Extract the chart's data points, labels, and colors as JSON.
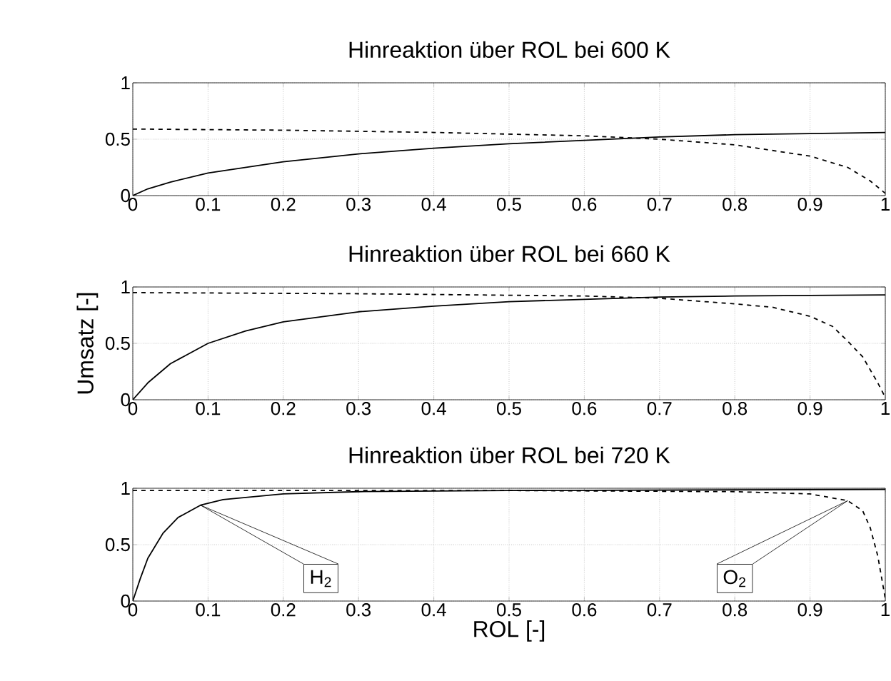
{
  "chart_data": [
    {
      "type": "line",
      "title": "Hinreaktion über ROL bei 600 K",
      "xlim": [
        0,
        1
      ],
      "ylim": [
        0,
        1
      ],
      "xticks": [
        0,
        0.1,
        0.2,
        0.3,
        0.4,
        0.5,
        0.6,
        0.7,
        0.8,
        0.9,
        1
      ],
      "yticks": [
        0,
        0.5,
        1
      ],
      "grid": true,
      "series": [
        {
          "color": "#000000",
          "line_style": "solid",
          "x": [
            0,
            0.02,
            0.05,
            0.1,
            0.2,
            0.3,
            0.4,
            0.5,
            0.6,
            0.7,
            0.8,
            0.9,
            1
          ],
          "values": [
            0,
            0.06,
            0.12,
            0.2,
            0.3,
            0.37,
            0.42,
            0.46,
            0.49,
            0.52,
            0.54,
            0.55,
            0.56
          ]
        },
        {
          "color": "#000000",
          "line_style": "dashed",
          "x": [
            0,
            0.2,
            0.4,
            0.6,
            0.7,
            0.8,
            0.9,
            0.95,
            0.98,
            1
          ],
          "values": [
            0.59,
            0.58,
            0.56,
            0.53,
            0.5,
            0.45,
            0.35,
            0.25,
            0.13,
            0.02
          ]
        }
      ]
    },
    {
      "type": "line",
      "title": "Hinreaktion über ROL bei 660 K",
      "ylabel": "Umsatz [-]",
      "xlim": [
        0,
        1
      ],
      "ylim": [
        0,
        1
      ],
      "xticks": [
        0,
        0.1,
        0.2,
        0.3,
        0.4,
        0.5,
        0.6,
        0.7,
        0.8,
        0.9,
        1
      ],
      "yticks": [
        0,
        0.5,
        1
      ],
      "grid": true,
      "series": [
        {
          "color": "#000000",
          "line_style": "solid",
          "x": [
            0,
            0.02,
            0.05,
            0.1,
            0.15,
            0.2,
            0.3,
            0.4,
            0.5,
            0.6,
            0.7,
            0.8,
            1
          ],
          "values": [
            0,
            0.15,
            0.32,
            0.5,
            0.61,
            0.69,
            0.78,
            0.83,
            0.87,
            0.89,
            0.91,
            0.92,
            0.93
          ]
        },
        {
          "color": "#000000",
          "line_style": "dashed",
          "x": [
            0,
            0.3,
            0.6,
            0.7,
            0.8,
            0.85,
            0.9,
            0.93,
            0.95,
            0.97,
            0.99,
            1
          ],
          "values": [
            0.95,
            0.94,
            0.92,
            0.9,
            0.85,
            0.82,
            0.74,
            0.65,
            0.52,
            0.38,
            0.15,
            0.02
          ]
        }
      ]
    },
    {
      "type": "line",
      "title": "Hinreaktion über ROL bei 720 K",
      "xlabel": "ROL [-]",
      "xlim": [
        0,
        1
      ],
      "ylim": [
        0,
        1
      ],
      "xticks": [
        0,
        0.1,
        0.2,
        0.3,
        0.4,
        0.5,
        0.6,
        0.7,
        0.8,
        0.9,
        1
      ],
      "yticks": [
        0,
        0.5,
        1
      ],
      "grid": true,
      "series": [
        {
          "color": "#000000",
          "line_style": "solid",
          "x": [
            0,
            0.01,
            0.02,
            0.04,
            0.06,
            0.09,
            0.12,
            0.2,
            0.3,
            0.5,
            1
          ],
          "values": [
            0,
            0.2,
            0.38,
            0.6,
            0.74,
            0.85,
            0.9,
            0.95,
            0.97,
            0.98,
            0.99
          ]
        },
        {
          "color": "#000000",
          "line_style": "dashed",
          "x": [
            0,
            0.5,
            0.8,
            0.9,
            0.95,
            0.97,
            0.98,
            0.99,
            1
          ],
          "values": [
            0.98,
            0.98,
            0.97,
            0.95,
            0.89,
            0.8,
            0.65,
            0.4,
            0.02
          ]
        }
      ],
      "annotations": [
        "H$_{2}$",
        "O$_{2}$"
      ]
    }
  ]
}
